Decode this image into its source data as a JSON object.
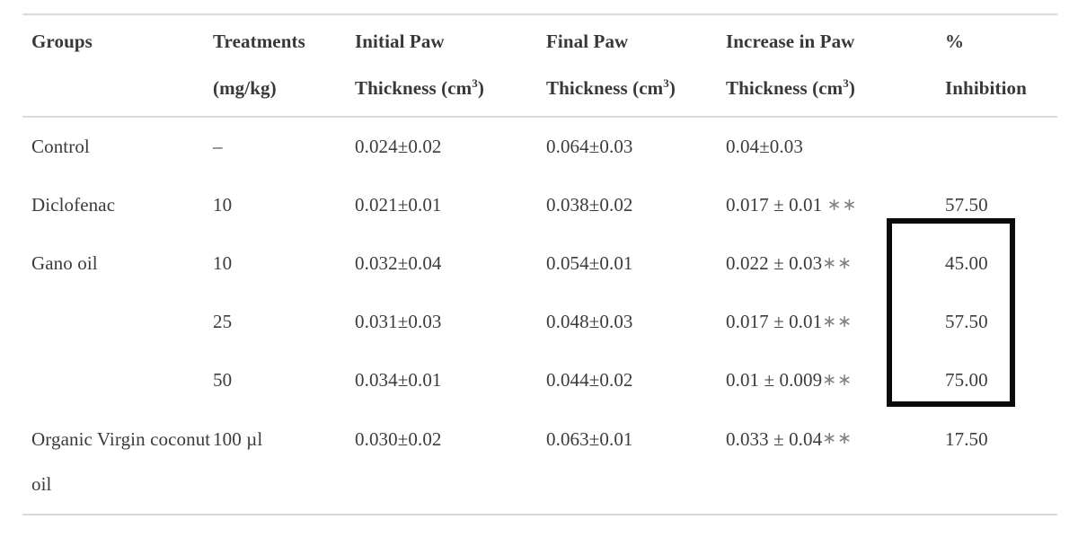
{
  "colors": {
    "text": "#3b3b3b",
    "rule_line": "#dadada",
    "highlight_box": "#0b0b0b",
    "significance_marker": "#828282"
  },
  "table": {
    "headers": {
      "groups": {
        "line1": "Groups",
        "line2": ""
      },
      "treatments": {
        "line1": "Treatments",
        "line2": "(mg/kg)"
      },
      "initial": {
        "line1": "Initial Paw",
        "line2_pre": "Thickness (cm",
        "line2_sup": "3",
        "line2_post": ")"
      },
      "final": {
        "line1": "Final Paw",
        "line2_pre": "Thickness (cm",
        "line2_sup": "3",
        "line2_post": ")"
      },
      "increase": {
        "line1": "Increase in Paw",
        "line2_pre": "Thickness (cm",
        "line2_sup": "3",
        "line2_post": ")"
      },
      "inhibition": {
        "line1": "%",
        "line2": "Inhibition"
      }
    },
    "rows": [
      {
        "group": "Control",
        "treatment": "–",
        "initial": "0.024±0.02",
        "final": "0.064±0.03",
        "increase": "0.04±0.03",
        "marker": "",
        "inhibition": ""
      },
      {
        "group": "Diclofenac",
        "treatment": "10",
        "initial": "0.021±0.01",
        "final": "0.038±0.02",
        "increase": "0.017 ± 0.01 ",
        "marker": "∗∗",
        "inhibition": "57.50"
      },
      {
        "group": "Gano oil",
        "treatment": "10",
        "initial": "0.032±0.04",
        "final": "0.054±0.01",
        "increase": "0.022 ± 0.03",
        "marker": "∗∗",
        "inhibition": "45.00"
      },
      {
        "group": "",
        "treatment": "25",
        "initial": "0.031±0.03",
        "final": "0.048±0.03",
        "increase": "0.017 ± 0.01",
        "marker": "∗∗",
        "inhibition": "57.50"
      },
      {
        "group": "",
        "treatment": "50",
        "initial": "0.034±0.01",
        "final": "0.044±0.02",
        "increase": "0.01 ± 0.009",
        "marker": "∗∗",
        "inhibition": "75.00"
      },
      {
        "group": "Organic Virgin coconut oil",
        "treatment": "100 µl",
        "initial": "0.030±0.02",
        "final": "0.063±0.01",
        "increase": "0.033 ± 0.04",
        "marker": "∗∗",
        "inhibition": "17.50"
      }
    ],
    "highlight_note": "black rectangle around % Inhibition values of Gano oil rows"
  },
  "chart_data": {
    "type": "table",
    "title": "",
    "columns": [
      "Groups",
      "Treatments (mg/kg)",
      "Initial Paw Thickness (cm3)",
      "Final Paw Thickness (cm3)",
      "Increase in Paw Thickness (cm3)",
      "% Inhibition"
    ],
    "rows": [
      [
        "Control",
        "–",
        "0.024±0.02",
        "0.064±0.03",
        "0.04±0.03",
        ""
      ],
      [
        "Diclofenac",
        "10",
        "0.021±0.01",
        "0.038±0.02",
        "0.017 ± 0.01 ∗∗",
        "57.50"
      ],
      [
        "Gano oil",
        "10",
        "0.032±0.04",
        "0.054±0.01",
        "0.022 ± 0.03∗∗",
        "45.00"
      ],
      [
        "Gano oil",
        "25",
        "0.031±0.03",
        "0.048±0.03",
        "0.017 ± 0.01∗∗",
        "57.50"
      ],
      [
        "Gano oil",
        "50",
        "0.034±0.01",
        "0.044±0.02",
        "0.01 ± 0.009∗∗",
        "75.00"
      ],
      [
        "Organic Virgin coconut oil",
        "100 µl",
        "0.030±0.02",
        "0.063±0.01",
        "0.033 ± 0.04∗∗",
        "17.50"
      ]
    ],
    "highlighted_cells": [
      "45.00",
      "57.50",
      "75.00"
    ]
  }
}
